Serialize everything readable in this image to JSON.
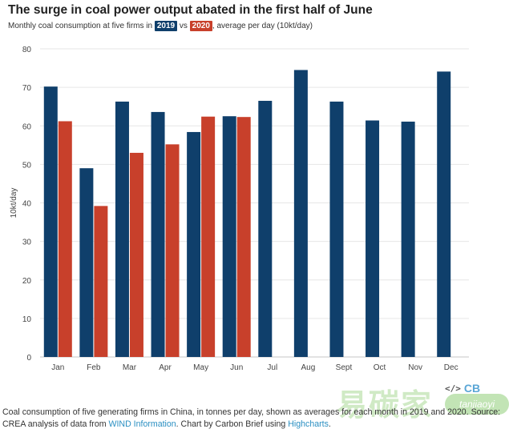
{
  "header": {
    "title": "The surge in coal power output abated in the first half of June",
    "subtitle_prefix": "Monthly coal consumption at five firms in",
    "subtitle_vs": "vs",
    "subtitle_suffix": ", average per day (10kt/day)",
    "legend_2019": "2019",
    "legend_2020": "2020"
  },
  "colors": {
    "series_2019": "#0f3f6b",
    "series_2020": "#c8402b",
    "link": "#2a8fc2"
  },
  "chart_data": {
    "type": "bar",
    "title": "The surge in coal power output abated in the first half of June",
    "subtitle": "Monthly coal consumption at five firms in 2019 vs 2020, average per day (10kt/day)",
    "xlabel": "",
    "ylabel": "10kt/day",
    "ylim": [
      0,
      80
    ],
    "yticks": [
      0,
      10,
      20,
      30,
      40,
      50,
      60,
      70,
      80
    ],
    "grid": true,
    "categories": [
      "Jan",
      "Feb",
      "Mar",
      "Apr",
      "May",
      "Jun",
      "Jul",
      "Aug",
      "Sept",
      "Oct",
      "Nov",
      "Dec"
    ],
    "series": [
      {
        "name": "2019",
        "values": [
          70.2,
          49.0,
          66.3,
          63.6,
          58.4,
          62.5,
          66.5,
          74.5,
          66.3,
          61.4,
          61.1,
          74.1
        ]
      },
      {
        "name": "2020",
        "values": [
          61.2,
          39.2,
          53.0,
          55.2,
          62.4,
          62.3,
          null,
          null,
          null,
          null,
          null,
          null
        ]
      }
    ]
  },
  "footer": {
    "text_1": "Coal consumption of five generating firms in China, in tonnes per day, shown as averages for each month in 2019 and 2020. Source: CREA analysis of data from ",
    "link_1": "WIND Information",
    "text_2": ". Chart by Carbon Brief using ",
    "link_2": "Highcharts",
    "text_3": "."
  },
  "branding": {
    "cb_code": "</>",
    "cb_label": "CB",
    "watermark": "易碳家",
    "watermark_sub": "tanjiaoyi"
  }
}
